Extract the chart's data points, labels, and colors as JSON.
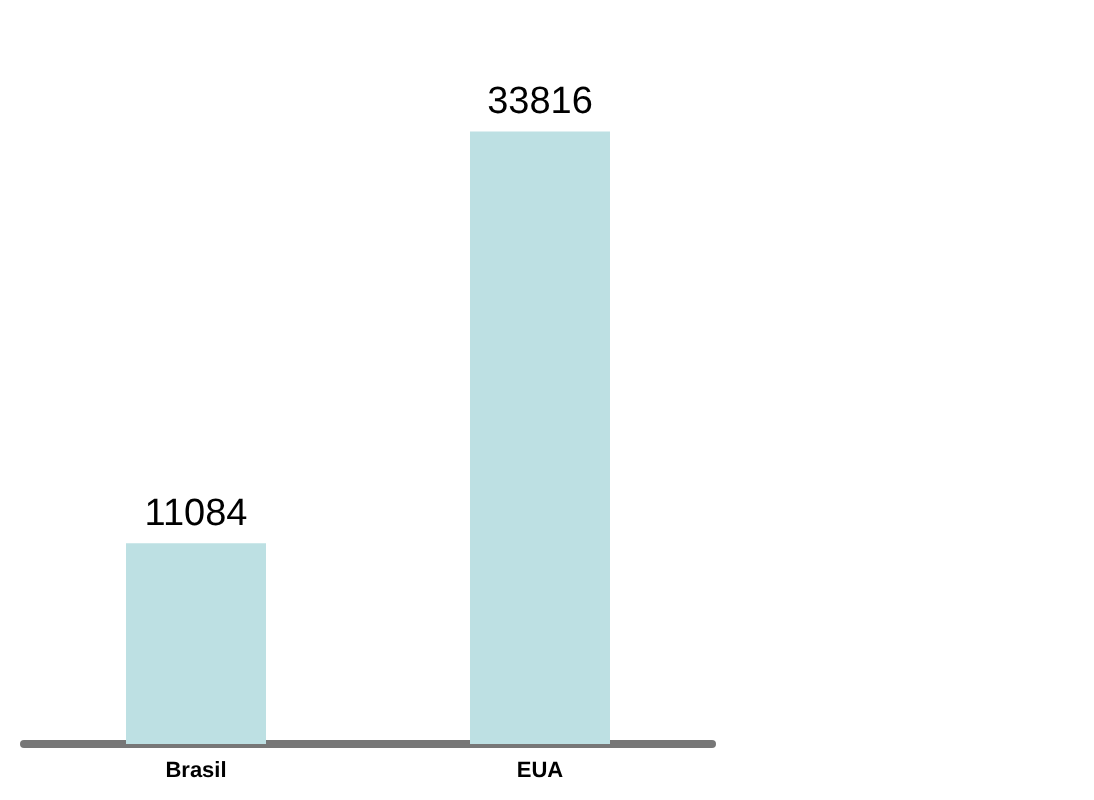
{
  "chart_data": {
    "type": "bar",
    "categories": [
      "Brasil",
      "EUA"
    ],
    "values": [
      11084,
      33816
    ],
    "color": "#bde0e3",
    "data_labels": true
  }
}
